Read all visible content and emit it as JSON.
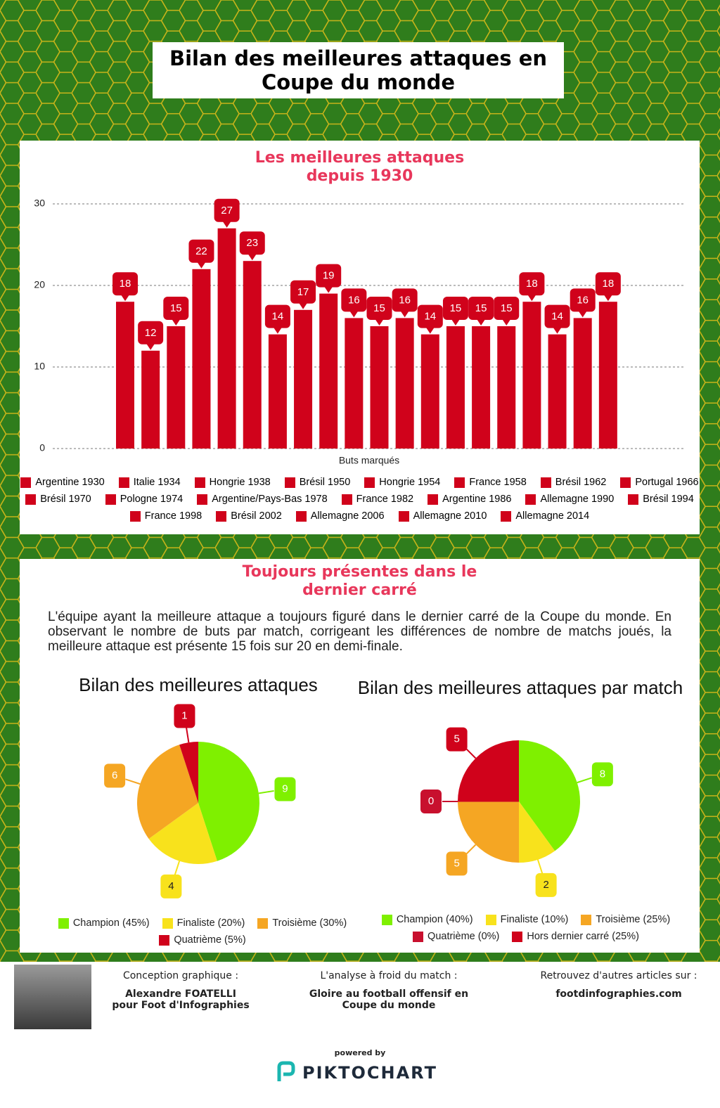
{
  "title": [
    "Bilan des meilleures attaques en",
    "Coupe du monde"
  ],
  "chart_data": [
    {
      "type": "bar",
      "title": [
        "Les meilleures attaques",
        "depuis 1930"
      ],
      "x_label": "Buts marqués",
      "categories": [
        "Argentine 1930",
        "Italie 1934",
        "Hongrie 1938",
        "Brésil 1950",
        "Hongrie 1954",
        "France 1958",
        "Brésil 1962",
        "Portugal 1966",
        "Brésil 1970",
        "Pologne 1974",
        "Argentine/Pays-Bas 1978",
        "France 1982",
        "Argentine 1986",
        "Allemagne 1990",
        "Brésil 1994",
        "France 1998",
        "Brésil 2002",
        "Allemagne 2006",
        "Allemagne 2010",
        "Allemagne 2014"
      ],
      "values": [
        18,
        12,
        15,
        22,
        27,
        23,
        14,
        17,
        19,
        16,
        15,
        16,
        14,
        15,
        15,
        15,
        18,
        14,
        16,
        18
      ],
      "color": "#d0021b",
      "ylim": [
        0,
        30
      ],
      "yticks": [
        0,
        10,
        20,
        30
      ],
      "grid": true
    },
    {
      "type": "pie",
      "title": "Bilan des meilleures attaques",
      "categories": [
        "Champion (45%)",
        "Finaliste (20%)",
        "Troisième (30%)",
        "Quatrième (5%)"
      ],
      "values": [
        9,
        4,
        6,
        1
      ],
      "colors": [
        "#7ff000",
        "#f8e21c",
        "#f5a623",
        "#d0021b"
      ]
    },
    {
      "type": "pie",
      "title": "Bilan des meilleures attaques par match",
      "categories": [
        "Champion (40%)",
        "Finaliste (10%)",
        "Troisième (25%)",
        "Quatrième (0%)",
        "Hors dernier carré (25%)"
      ],
      "values": [
        8,
        2,
        5,
        0,
        5
      ],
      "colors": [
        "#7ff000",
        "#f8e21c",
        "#f5a623",
        "#c8102e",
        "#d0021b"
      ]
    }
  ],
  "section": {
    "title": [
      "Toujours présentes dans le",
      "dernier carré"
    ],
    "text": "L'équipe ayant la meilleure attaque a toujours figuré dans le dernier carré de la Coupe du monde. En observant le nombre de buts par match, corrigeant les différences de nombre de matchs joués, la meilleure attaque est présente 15 fois sur 20 en demi-finale."
  },
  "footer": {
    "credit_label": "Conception graphique :",
    "credit_name": [
      "Alexandre FOATELLI",
      "pour Foot d'Infographies"
    ],
    "analysis_label": "L'analyse à froid du match :",
    "analysis_title": [
      "Gloire au football offensif en",
      "Coupe du monde"
    ],
    "site_label": "Retrouvez d'autres articles sur :",
    "site": "footdinfographies.com",
    "powered": "powered by",
    "brand": "PIKTOCHART"
  }
}
